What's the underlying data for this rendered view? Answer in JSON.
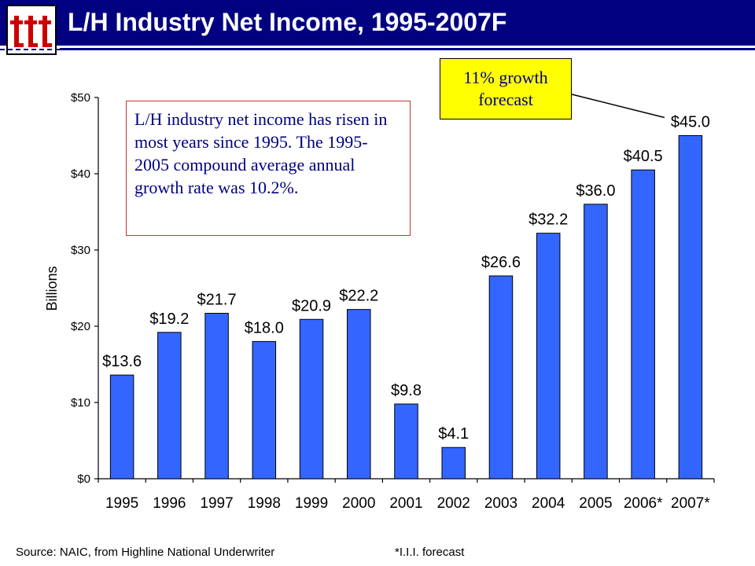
{
  "slide": {
    "title": "L/H Industry Net Income, 1995-2007F",
    "source": "Source:  NAIC, from Highline National Underwriter",
    "footnote": "*I.I.I. forecast",
    "colors": {
      "title_bar": "#000080",
      "bar": "#3366ff",
      "callout": "#ffff00",
      "note_border": "#cc3333"
    },
    "logo": {
      "letters": "ttt",
      "icon": "iii-logo-icon"
    }
  },
  "callout": {
    "line1": "11% growth",
    "line2": "forecast"
  },
  "note": {
    "text": "L/H industry net income has risen in most years since 1995. The 1995-2005 compound average annual growth rate was 10.2%."
  },
  "chart_data": {
    "type": "bar",
    "categories": [
      "1995",
      "1996",
      "1997",
      "1998",
      "1999",
      "2000",
      "2001",
      "2002",
      "2003",
      "2004",
      "2005",
      "2006*",
      "2007*"
    ],
    "values": [
      13.6,
      19.2,
      21.7,
      18.0,
      20.9,
      22.2,
      9.8,
      4.1,
      26.6,
      32.2,
      36.0,
      40.5,
      45.0
    ],
    "data_labels": [
      "$13.6",
      "$19.2",
      "$21.7",
      "$18.0",
      "$20.9",
      "$22.2",
      "$9.8",
      "$4.1",
      "$26.6",
      "$32.2",
      "$36.0",
      "$40.5",
      "$45.0"
    ],
    "title": "L/H Industry Net Income, 1995-2007F",
    "xlabel": "",
    "ylabel": "Billions",
    "ylim": [
      0,
      50
    ],
    "yticks": [
      0,
      10,
      20,
      30,
      40,
      50
    ],
    "ytick_labels": [
      "$0",
      "$10",
      "$20",
      "$30",
      "$40",
      "$50"
    ],
    "grid": false,
    "legend": "none"
  }
}
